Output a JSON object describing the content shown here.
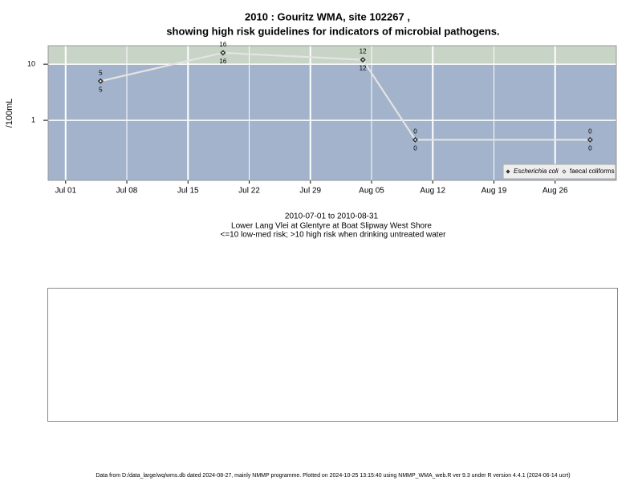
{
  "chart_data": {
    "type": "line",
    "title": "2010 : Gouritz WMA, site 102267 ,",
    "subtitle": "showing high risk guidelines for indicators of microbial pathogens.",
    "ylabel": "/100mL",
    "notes": [
      "2010-07-01 to 2010-08-31",
      "Lower Lang Vlei at Glentyre at Boat Slipway West Shore",
      "<=10 low-med risk; >10 high risk when drinking untreated water"
    ],
    "footer": "Data from D:/data_large/wq/wms.db dated 2024-08-27, mainly NMMP programme. Plotted on 2024-10-25 13:15:40 using NMMP_WMA_web.R ver 9.3 under R version 4.4.1 (2024-06-14 ucrt)",
    "x": [
      "2010-07-05",
      "2010-07-19",
      "2010-08-04",
      "2010-08-10",
      "2010-08-30"
    ],
    "series": [
      {
        "name": "Escherichia coli",
        "color": "#333333",
        "values": [
          5,
          16,
          12,
          0.45,
          0.45
        ],
        "value_labels": [
          "5",
          "16",
          "12",
          "0",
          "0"
        ]
      },
      {
        "name": "faecal coliforms",
        "color": "#ffffff",
        "values": [
          5,
          16,
          12,
          0.45,
          0.45
        ],
        "value_labels": [
          "5",
          "16",
          "12",
          "0",
          "0"
        ]
      }
    ],
    "line_color": "#e4e4e4",
    "ylog": true,
    "ylim": [
      0.085,
      21.4
    ],
    "yticks": [
      1,
      10
    ],
    "threshold": 10,
    "high_color": "#c8d4c6",
    "low_color": "#a3b3cc",
    "xlim": [
      "2010-06-29",
      "2010-09-02"
    ],
    "xticks": [
      {
        "value": "2010-07-01",
        "label": "Jul 01"
      },
      {
        "value": "2010-07-08",
        "label": "Jul 08"
      },
      {
        "value": "2010-07-15",
        "label": "Jul 15"
      },
      {
        "value": "2010-07-22",
        "label": "Jul 22"
      },
      {
        "value": "2010-07-29",
        "label": "Jul 29"
      },
      {
        "value": "2010-08-05",
        "label": "Aug 05"
      },
      {
        "value": "2010-08-12",
        "label": "Aug 12"
      },
      {
        "value": "2010-08-19",
        "label": "Aug 19"
      },
      {
        "value": "2010-08-26",
        "label": "Aug 26"
      }
    ],
    "grid": true,
    "legend": "bottom-right"
  }
}
